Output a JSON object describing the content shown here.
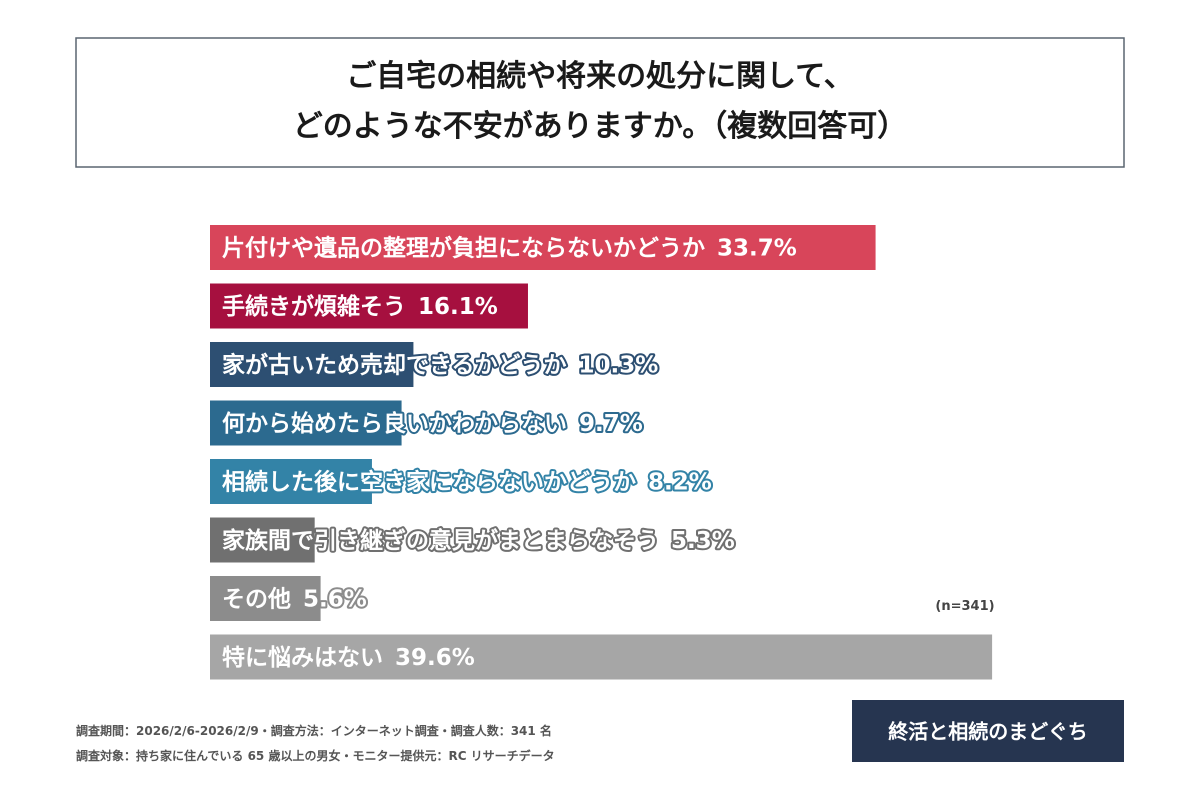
{
  "chart_data": {
    "type": "bar",
    "orientation": "horizontal",
    "title_lines": [
      "ご自宅の相続や将来の処分に関して、",
      "どのような不安がありますか。（複数回答可）"
    ],
    "categories": [
      "片付けや遺品の整理が負担にならないかどうか",
      "手続きが煩雑そう",
      "家が古いため売却できるかどうか",
      "何から始めたら良いかわからない",
      "相続した後に空き家にならないかどうか",
      "家族間で引き継ぎの意見がまとまらなそう",
      "その他",
      "特に悩みはない"
    ],
    "values": [
      33.7,
      16.1,
      10.3,
      9.7,
      8.2,
      5.3,
      5.6,
      39.6
    ],
    "value_labels": [
      "33.7%",
      "16.1%",
      "10.3%",
      "9.7%",
      "8.2%",
      "5.3%",
      "5.6%",
      "39.6%"
    ],
    "colors": [
      "#d8455a",
      "#a6103f",
      "#2d4f72",
      "#2c6a8f",
      "#3383a7",
      "#707070",
      "#8c8c8c",
      "#a6a6a6"
    ],
    "xlim": [
      0,
      40
    ],
    "note": "(n=341)",
    "footer_lines": [
      "調査期間：2026/2/6-2026/2/9・調査方法：インターネット調査・調査人数：341 名",
      "調査対象：持ち家に住んでいる 65 歳以上の男女・モニター提供元：RC リサーチデータ"
    ],
    "logo": "終活と相続のまどぐち"
  }
}
